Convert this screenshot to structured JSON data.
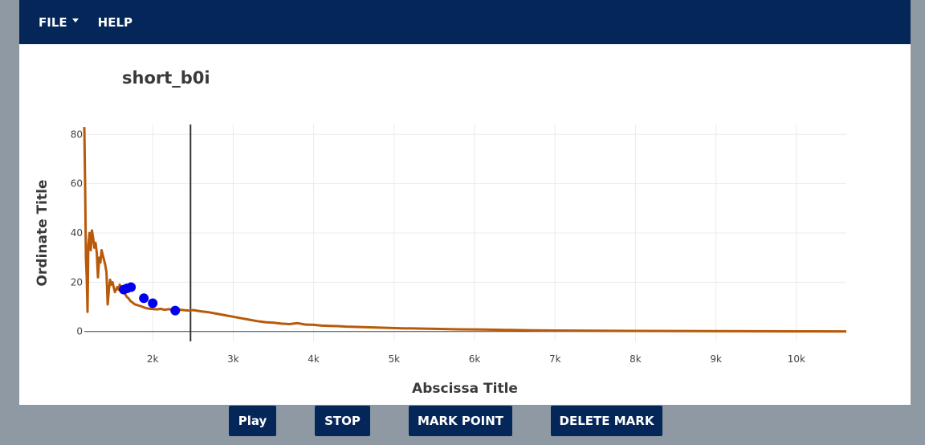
{
  "menu": {
    "file_label": "FILE",
    "help_label": "HELP"
  },
  "colors": {
    "menubar": "#052659",
    "background": "#8e99a4",
    "line": "#b85a0a",
    "marker": "#0000ee",
    "cursor": "#333333"
  },
  "controls": {
    "play_label": "Play",
    "stop_label": "STOP",
    "mark_label": "MARK POINT",
    "delete_label": "DELETE MARK"
  },
  "chart_data": {
    "type": "line",
    "title": "short_b0i",
    "xlabel": "Abscissa Title",
    "ylabel": "Ordinate Title",
    "xlim": [
      1150,
      10620
    ],
    "ylim": [
      -4,
      84
    ],
    "x_ticks": [
      2000,
      3000,
      4000,
      5000,
      6000,
      7000,
      8000,
      9000,
      10000
    ],
    "x_tick_labels": [
      "2k",
      "3k",
      "4k",
      "5k",
      "6k",
      "7k",
      "8k",
      "9k",
      "10k"
    ],
    "y_ticks": [
      0,
      20,
      40,
      60,
      80
    ],
    "y_tick_labels": [
      "0",
      "20",
      "40",
      "60",
      "80"
    ],
    "grid": true,
    "cursor_x": 2470,
    "series": [
      {
        "values_x": [
          1150,
          1160,
          1170,
          1180,
          1190,
          1200,
          1215,
          1230,
          1245,
          1260,
          1275,
          1290,
          1305,
          1320,
          1335,
          1350,
          1365,
          1380,
          1395,
          1410,
          1425,
          1440,
          1455,
          1470,
          1485,
          1500,
          1515,
          1530,
          1545,
          1560,
          1575,
          1590,
          1605,
          1620,
          1640,
          1660,
          1680,
          1700,
          1720,
          1740,
          1760,
          1780,
          1800,
          1830,
          1860,
          1890,
          1920,
          1950,
          1980,
          2010,
          2050,
          2100,
          2150,
          2200,
          2250,
          2300,
          2350,
          2400,
          2450,
          2500,
          2600,
          2700,
          2800,
          2900,
          3000,
          3100,
          3200,
          3300,
          3400,
          3500,
          3600,
          3700,
          3800,
          3900,
          4000,
          4100,
          4200,
          4300,
          4400,
          4500,
          4700,
          4900,
          5100,
          5300,
          5500,
          5800,
          6100,
          6400,
          6700,
          7000,
          7500,
          8000,
          8500,
          9000,
          9500,
          10000,
          10620
        ],
        "values_y": [
          83,
          60,
          30,
          22,
          8,
          35,
          40,
          33,
          41,
          38,
          34,
          36,
          32,
          22,
          30,
          28,
          33,
          31,
          29,
          27,
          24,
          11,
          17,
          21,
          19,
          20,
          18,
          16,
          17,
          18,
          17,
          19,
          18,
          17,
          16,
          15,
          14,
          13.5,
          12.5,
          12,
          11.5,
          11,
          10.8,
          10.5,
          10.2,
          9.8,
          9.5,
          9.3,
          9.2,
          9.1,
          9,
          9.2,
          8.8,
          9.1,
          8.7,
          8.9,
          8.8,
          8.6,
          8.5,
          8.7,
          8.2,
          7.8,
          7.2,
          6.6,
          6,
          5.4,
          4.8,
          4.2,
          3.8,
          3.6,
          3.2,
          3,
          3.4,
          2.8,
          2.7,
          2.4,
          2.3,
          2.2,
          2,
          1.9,
          1.7,
          1.5,
          1.3,
          1.2,
          1.1,
          0.9,
          0.8,
          0.65,
          0.5,
          0.4,
          0.3,
          0.25,
          0.2,
          0.15,
          0.1,
          0.07,
          0.05
        ]
      },
      {
        "mode": "markers",
        "values_x": [
          1640,
          1680,
          1730,
          1890,
          2000,
          2280
        ],
        "values_y": [
          17,
          17.5,
          18,
          13.5,
          11.5,
          8.5
        ]
      }
    ]
  }
}
